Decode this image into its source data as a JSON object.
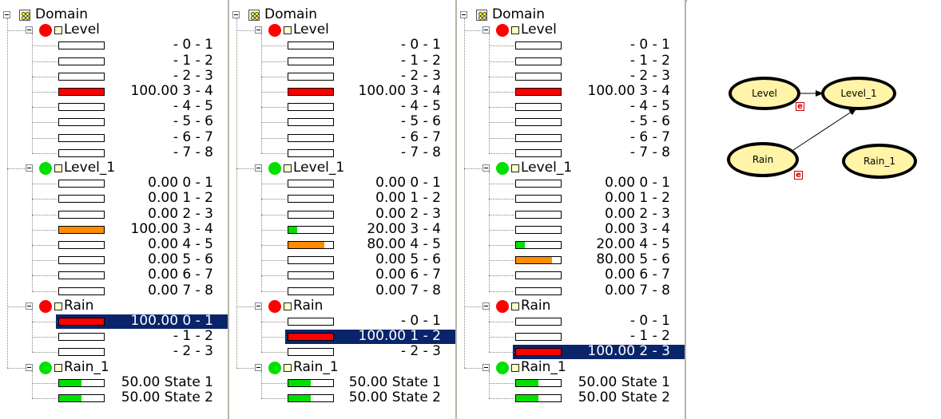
{
  "colors": {
    "red": "#ff0000",
    "orange": "#ff8c00",
    "green": "#00e000",
    "selection": "#0a246a",
    "node_fill": "#fff4a8"
  },
  "icons": {
    "domain": "domain-icon",
    "node_red": "red-circle-icon",
    "node_green": "green-circle-icon"
  },
  "panes": [
    {
      "domain_label": "Domain",
      "nodes": [
        {
          "name": "Level",
          "indicator": "red",
          "states": [
            {
              "value": "",
              "label": "- 0 - 1",
              "fill": 0,
              "color": "red"
            },
            {
              "value": "",
              "label": "- 1 - 2",
              "fill": 0,
              "color": "red"
            },
            {
              "value": "",
              "label": "- 2 - 3",
              "fill": 0,
              "color": "red"
            },
            {
              "value": "100.00",
              "label": "3 - 4",
              "fill": 1,
              "color": "red"
            },
            {
              "value": "",
              "label": "- 4 - 5",
              "fill": 0,
              "color": "red"
            },
            {
              "value": "",
              "label": "- 5 - 6",
              "fill": 0,
              "color": "red"
            },
            {
              "value": "",
              "label": "- 6 - 7",
              "fill": 0,
              "color": "red"
            },
            {
              "value": "",
              "label": "- 7 - 8",
              "fill": 0,
              "color": "red"
            }
          ]
        },
        {
          "name": "Level_1",
          "indicator": "green",
          "states": [
            {
              "value": "0.00",
              "label": "0 - 1",
              "fill": 0,
              "color": "orange"
            },
            {
              "value": "0.00",
              "label": "1 - 2",
              "fill": 0,
              "color": "orange"
            },
            {
              "value": "0.00",
              "label": "2 - 3",
              "fill": 0,
              "color": "orange"
            },
            {
              "value": "100.00",
              "label": "3 - 4",
              "fill": 1,
              "color": "orange"
            },
            {
              "value": "0.00",
              "label": "4 - 5",
              "fill": 0,
              "color": "orange"
            },
            {
              "value": "0.00",
              "label": "5 - 6",
              "fill": 0,
              "color": "orange"
            },
            {
              "value": "0.00",
              "label": "6 - 7",
              "fill": 0,
              "color": "orange"
            },
            {
              "value": "0.00",
              "label": "7 - 8",
              "fill": 0,
              "color": "orange"
            }
          ]
        },
        {
          "name": "Rain",
          "indicator": "red",
          "states": [
            {
              "value": "100.00",
              "label": "0 - 1",
              "fill": 1,
              "color": "red",
              "selected": true
            },
            {
              "value": "",
              "label": "- 1 - 2",
              "fill": 0,
              "color": "red"
            },
            {
              "value": "",
              "label": "- 2 - 3",
              "fill": 0,
              "color": "red"
            }
          ]
        },
        {
          "name": "Rain_1",
          "indicator": "green",
          "states": [
            {
              "value": "50.00",
              "label": "State 1",
              "fill": 0.5,
              "color": "green"
            },
            {
              "value": "50.00",
              "label": "State 2",
              "fill": 0.5,
              "color": "green"
            }
          ]
        }
      ]
    },
    {
      "domain_label": "Domain",
      "nodes": [
        {
          "name": "Level",
          "indicator": "red",
          "states": [
            {
              "value": "",
              "label": "- 0 - 1",
              "fill": 0,
              "color": "red"
            },
            {
              "value": "",
              "label": "- 1 - 2",
              "fill": 0,
              "color": "red"
            },
            {
              "value": "",
              "label": "- 2 - 3",
              "fill": 0,
              "color": "red"
            },
            {
              "value": "100.00",
              "label": "3 - 4",
              "fill": 1,
              "color": "red"
            },
            {
              "value": "",
              "label": "- 4 - 5",
              "fill": 0,
              "color": "red"
            },
            {
              "value": "",
              "label": "- 5 - 6",
              "fill": 0,
              "color": "red"
            },
            {
              "value": "",
              "label": "- 6 - 7",
              "fill": 0,
              "color": "red"
            },
            {
              "value": "",
              "label": "- 7 - 8",
              "fill": 0,
              "color": "red"
            }
          ]
        },
        {
          "name": "Level_1",
          "indicator": "green",
          "states": [
            {
              "value": "0.00",
              "label": "0 - 1",
              "fill": 0,
              "color": "orange"
            },
            {
              "value": "0.00",
              "label": "1 - 2",
              "fill": 0,
              "color": "orange"
            },
            {
              "value": "0.00",
              "label": "2 - 3",
              "fill": 0,
              "color": "orange"
            },
            {
              "value": "20.00",
              "label": "3 - 4",
              "fill": 0.2,
              "color": "green"
            },
            {
              "value": "80.00",
              "label": "4 - 5",
              "fill": 0.8,
              "color": "orange"
            },
            {
              "value": "0.00",
              "label": "5 - 6",
              "fill": 0,
              "color": "orange"
            },
            {
              "value": "0.00",
              "label": "6 - 7",
              "fill": 0,
              "color": "orange"
            },
            {
              "value": "0.00",
              "label": "7 - 8",
              "fill": 0,
              "color": "orange"
            }
          ]
        },
        {
          "name": "Rain",
          "indicator": "red",
          "states": [
            {
              "value": "",
              "label": "- 0 - 1",
              "fill": 0,
              "color": "red"
            },
            {
              "value": "100.00",
              "label": "1 - 2",
              "fill": 1,
              "color": "red",
              "selected": true
            },
            {
              "value": "",
              "label": "- 2 - 3",
              "fill": 0,
              "color": "red"
            }
          ]
        },
        {
          "name": "Rain_1",
          "indicator": "green",
          "states": [
            {
              "value": "50.00",
              "label": "State 1",
              "fill": 0.5,
              "color": "green"
            },
            {
              "value": "50.00",
              "label": "State 2",
              "fill": 0.5,
              "color": "green"
            }
          ]
        }
      ]
    },
    {
      "domain_label": "Domain",
      "nodes": [
        {
          "name": "Level",
          "indicator": "red",
          "states": [
            {
              "value": "",
              "label": "- 0 - 1",
              "fill": 0,
              "color": "red"
            },
            {
              "value": "",
              "label": "- 1 - 2",
              "fill": 0,
              "color": "red"
            },
            {
              "value": "",
              "label": "- 2 - 3",
              "fill": 0,
              "color": "red"
            },
            {
              "value": "100.00",
              "label": "3 - 4",
              "fill": 1,
              "color": "red"
            },
            {
              "value": "",
              "label": "- 4 - 5",
              "fill": 0,
              "color": "red"
            },
            {
              "value": "",
              "label": "- 5 - 6",
              "fill": 0,
              "color": "red"
            },
            {
              "value": "",
              "label": "- 6 - 7",
              "fill": 0,
              "color": "red"
            },
            {
              "value": "",
              "label": "- 7 - 8",
              "fill": 0,
              "color": "red"
            }
          ]
        },
        {
          "name": "Level_1",
          "indicator": "green",
          "states": [
            {
              "value": "0.00",
              "label": "0 - 1",
              "fill": 0,
              "color": "orange"
            },
            {
              "value": "0.00",
              "label": "1 - 2",
              "fill": 0,
              "color": "orange"
            },
            {
              "value": "0.00",
              "label": "2 - 3",
              "fill": 0,
              "color": "orange"
            },
            {
              "value": "0.00",
              "label": "3 - 4",
              "fill": 0,
              "color": "orange"
            },
            {
              "value": "20.00",
              "label": "4 - 5",
              "fill": 0.2,
              "color": "green"
            },
            {
              "value": "80.00",
              "label": "5 - 6",
              "fill": 0.8,
              "color": "orange"
            },
            {
              "value": "0.00",
              "label": "6 - 7",
              "fill": 0,
              "color": "orange"
            },
            {
              "value": "0.00",
              "label": "7 - 8",
              "fill": 0,
              "color": "orange"
            }
          ]
        },
        {
          "name": "Rain",
          "indicator": "red",
          "states": [
            {
              "value": "",
              "label": "- 0 - 1",
              "fill": 0,
              "color": "red"
            },
            {
              "value": "",
              "label": "- 1 - 2",
              "fill": 0,
              "color": "red"
            },
            {
              "value": "100.00",
              "label": "2 - 3",
              "fill": 1,
              "color": "red",
              "selected": true
            }
          ]
        },
        {
          "name": "Rain_1",
          "indicator": "green",
          "states": [
            {
              "value": "50.00",
              "label": "State 1",
              "fill": 0.5,
              "color": "green"
            },
            {
              "value": "50.00",
              "label": "State 2",
              "fill": 0.5,
              "color": "green"
            }
          ]
        }
      ]
    }
  ],
  "network": {
    "nodes": [
      {
        "id": "level",
        "label": "Level",
        "evidence": true
      },
      {
        "id": "level1",
        "label": "Level_1",
        "evidence": false
      },
      {
        "id": "rain",
        "label": "Rain",
        "evidence": true
      },
      {
        "id": "rain1",
        "label": "Rain_1",
        "evidence": false
      }
    ],
    "evidence_badge": "e"
  }
}
